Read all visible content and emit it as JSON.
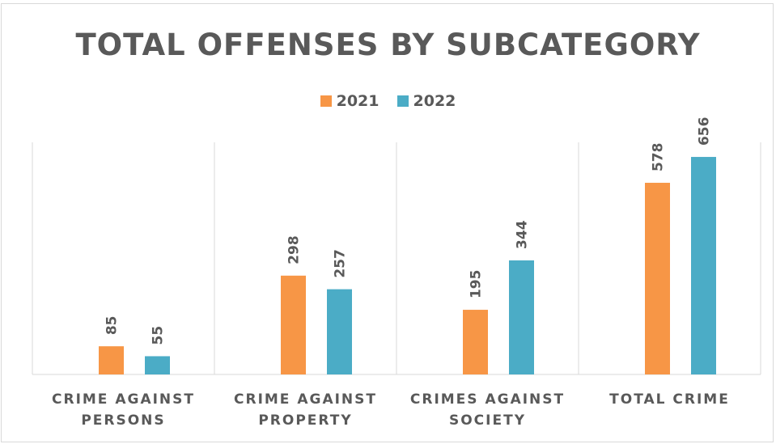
{
  "chart_data": {
    "type": "bar",
    "title": "TOTAL OFFENSES BY SUBCATEGORY",
    "categories": [
      [
        "CRIME AGAINST",
        "PERSONS"
      ],
      [
        "CRIME AGAINST",
        "PROPERTY"
      ],
      [
        "CRIMES AGAINST",
        "SOCIETY"
      ],
      [
        "TOTAL CRIME"
      ]
    ],
    "series": [
      {
        "name": "2021",
        "values": [
          85,
          298,
          195,
          578
        ],
        "color": "#F79646"
      },
      {
        "name": "2022",
        "values": [
          55,
          257,
          344,
          656
        ],
        "color": "#4BACC6"
      }
    ],
    "ylim": [
      0,
      700
    ],
    "legend_position": "top",
    "grid": "vertical category separators"
  }
}
